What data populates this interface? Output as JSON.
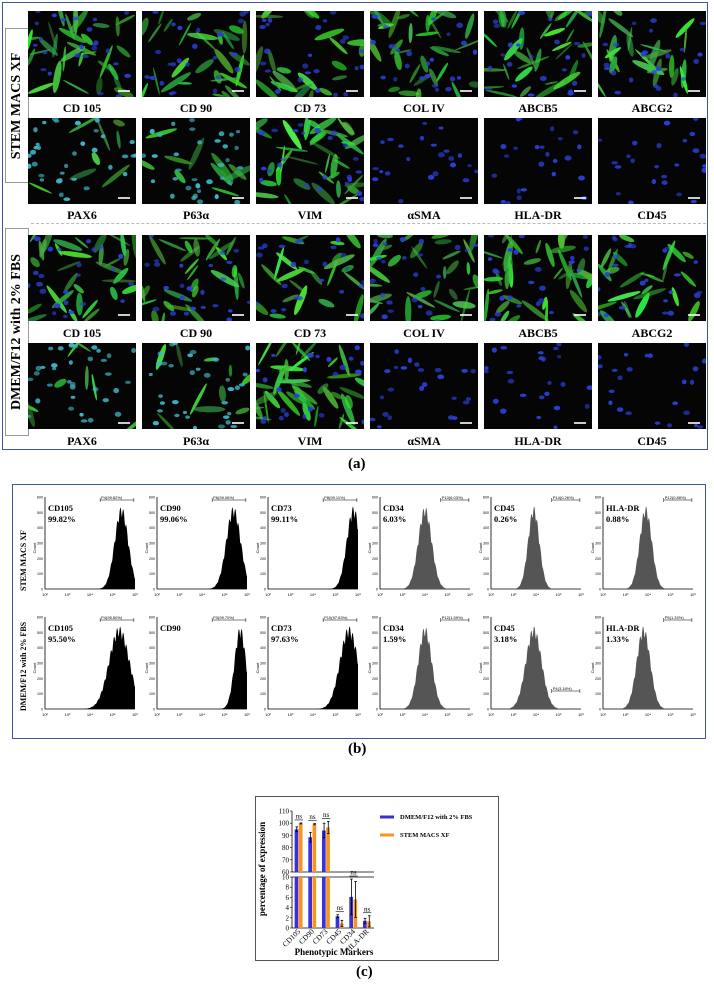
{
  "panel_a": {
    "caption": "(a)",
    "group1": {
      "label": "STEM MACS XF",
      "row1": [
        "CD 105",
        "CD 90",
        "CD 73",
        "COL IV",
        "ABCB5",
        "ABCG2"
      ],
      "row2": [
        "PAX6",
        "P63α",
        "VIM",
        "αSMA",
        "HLA-DR",
        "CD45"
      ]
    },
    "group2": {
      "label": "DMEM/F12 with 2% FBS",
      "row1": [
        "CD 105",
        "CD 90",
        "CD 73",
        "COL IV",
        "ABCB5",
        "ABCG2"
      ],
      "row2": [
        "PAX6",
        "P63α",
        "VIM",
        "αSMA",
        "HLA-DR",
        "CD45"
      ]
    }
  },
  "panel_b": {
    "caption": "(b)",
    "row_labels": [
      "STEM MACS XF",
      "DMEM/F12 with 2% FBS"
    ],
    "y_axis_label": "Count",
    "y_ticks": [
      "0",
      "100",
      "200",
      "300",
      "400",
      "500",
      "600"
    ],
    "x_ticks": [
      "10²",
      "10³",
      "10⁴",
      "10⁵",
      "10⁶"
    ],
    "rows": [
      [
        {
          "marker": "CD105",
          "pct": "99.82%",
          "gate": "P4(99.82%)",
          "peak": 5.4,
          "width": 0.3,
          "fill": "#000"
        },
        {
          "marker": "CD90",
          "pct": "99.06%",
          "gate": "P6(99.06%)",
          "peak": 5.4,
          "width": 0.32,
          "fill": "#000"
        },
        {
          "marker": "CD73",
          "pct": "99.11%",
          "gate": "P8(99.11%)",
          "peak": 5.8,
          "width": 0.3,
          "fill": "#000"
        },
        {
          "marker": "CD34",
          "pct": "6.03%",
          "gate": "P10(6.03%)",
          "peak": 4.0,
          "width": 0.3,
          "fill": "#555"
        },
        {
          "marker": "CD45",
          "pct": "0.26%",
          "gate": "P14(0.26%)",
          "peak": 3.9,
          "width": 0.25,
          "fill": "#555"
        },
        {
          "marker": "HLA-DR",
          "pct": "0.88%",
          "gate": "P12(0.88%)",
          "peak": 3.9,
          "width": 0.27,
          "fill": "#555"
        }
      ],
      [
        {
          "marker": "CD105",
          "pct": "95.50%",
          "gate": "P4(95.50%)",
          "peak": 5.3,
          "width": 0.45,
          "fill": "#000"
        },
        {
          "marker": "CD90",
          "pct": "",
          "gate": "P3(99.70%)",
          "peak": 5.7,
          "width": 0.25,
          "fill": "#000"
        },
        {
          "marker": "CD73",
          "pct": "97.63%",
          "gate": "P10(97.63%)",
          "peak": 5.6,
          "width": 0.4,
          "fill": "#000"
        },
        {
          "marker": "CD34",
          "pct": "1.59%",
          "gate": "P12(1.59%)",
          "peak": 4.0,
          "width": 0.3,
          "fill": "#555"
        },
        {
          "marker": "CD45",
          "pct": "3.18%",
          "gate": "P4(3.18%)",
          "peak": 3.9,
          "width": 0.35,
          "fill": "#555"
        },
        {
          "marker": "HLA-DR",
          "pct": "1.33%",
          "gate": "P5(1.33%)",
          "peak": 3.8,
          "width": 0.3,
          "fill": "#555"
        }
      ]
    ]
  },
  "panel_c": {
    "caption": "(c)",
    "chart_data": {
      "type": "bar",
      "categories": [
        "CD105",
        "CD90",
        "CD73",
        "CD45",
        "CD34",
        "HLA-DR"
      ],
      "series": [
        {
          "name": "DMEM/F12 with 2% FBS",
          "values": [
            95,
            88.5,
            94,
            2.3,
            6.1,
            1.4
          ],
          "errors": [
            2,
            4,
            6,
            0.3,
            3.5,
            0.5
          ],
          "color": "#3b2fd6"
        },
        {
          "name": "STEM MACS XF",
          "values": [
            99.8,
            99.2,
            96.5,
            0.9,
            5.6,
            1.3
          ],
          "errors": [
            0.4,
            0.5,
            5,
            0.6,
            3.5,
            1.1
          ],
          "color": "#f7941d"
        }
      ],
      "ylabel": "percentage of expression",
      "xlabel": "Phenotypic Markers",
      "y_upper_ticks": [
        "60",
        "70",
        "80",
        "90",
        "100",
        "110"
      ],
      "y_lower_ticks": [
        "0",
        "2",
        "4",
        "6",
        "8",
        "10"
      ],
      "significance": [
        "ns",
        "ns",
        "ns",
        "ns",
        "ns",
        "ns"
      ],
      "legend_position": "top-right"
    }
  }
}
